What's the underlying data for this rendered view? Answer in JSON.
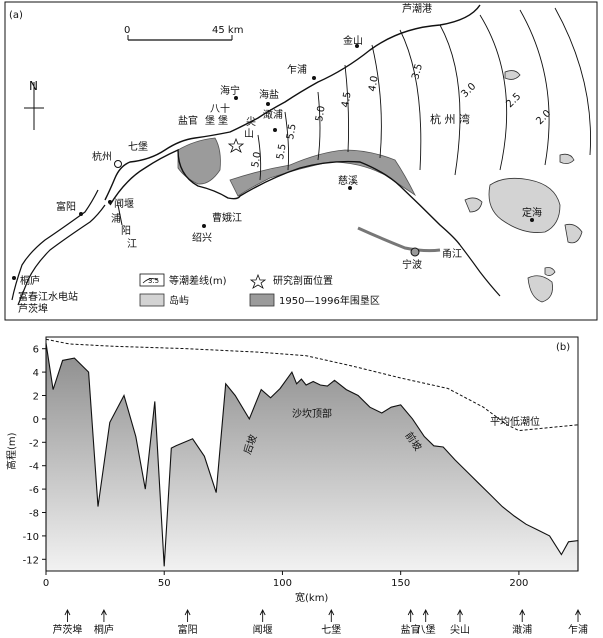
{
  "panel_a": {
    "label": "(a)",
    "scale": {
      "start": "0",
      "end": "45 km"
    },
    "north": "N",
    "places": {
      "luchao_port": "芦潮港",
      "jinshan": "金山",
      "zhapu": "乍浦",
      "haiyan": "海盐",
      "haining": "海宁",
      "ganpu": "澉浦",
      "bashi": "八十",
      "bao": "堡",
      "yanguan": "盐官",
      "bao2": "堡",
      "jian": "尖",
      "shan": "山",
      "qibao": "七堡",
      "hangzhou": "杭州",
      "hangzhou_bay": "杭 州 湾",
      "cixi": "慈溪",
      "caoejiang": "曹娥江",
      "shaoxing": "绍兴",
      "fuyang": "富阳",
      "wenyan": "闻堰",
      "puyang1": "浦",
      "puyang2": "阳",
      "puyang3": "江",
      "dinghai": "定海",
      "ningbo": "宁波",
      "yongjiang": "甬江",
      "tonglu": "桐庐",
      "fuchunjiang_dam": "富春江水电站",
      "lucibu": "芦茨埠"
    },
    "contours": [
      "5.0",
      "5.5",
      "5.5",
      "5.0",
      "4.5",
      "4.0",
      "3.5",
      "3.0",
      "2.5",
      "2.0"
    ],
    "legend": {
      "tidal_range": "等潮差线(m)",
      "study_site": "研究剖面位置",
      "island": "岛屿",
      "reclaimed": "1950—1996年围垦区"
    }
  },
  "panel_b": {
    "label": "(b)",
    "ylabel": "高程(m)",
    "xlabel": "宽(km)",
    "annotations": {
      "ridge": "沙坎顶部",
      "back_slope": "后坡",
      "front_slope": "前坡",
      "mean_low_tide": "平均低潮位"
    },
    "stations": [
      "芦茨埠",
      "桐庐",
      "富阳",
      "闻堰",
      "七堡",
      "盐官",
      "八堡",
      "尖山",
      "澉浦",
      "乍浦"
    ]
  },
  "chart_data": {
    "type": "area",
    "xlabel": "宽(km)",
    "ylabel": "高程(m)",
    "xlim": [
      0,
      225
    ],
    "ylim": [
      -13,
      7
    ],
    "xticks": [
      0,
      50,
      100,
      150,
      200
    ],
    "yticks": [
      6,
      4,
      2,
      0,
      -2,
      -4,
      -6,
      -8,
      -10,
      -12
    ],
    "series": [
      {
        "x": [
          0,
          3,
          7,
          12,
          18,
          22,
          27,
          33,
          38,
          42,
          46,
          50,
          53,
          55,
          62,
          67,
          72,
          76,
          80,
          86,
          91,
          95,
          99,
          104,
          106,
          108,
          110,
          113,
          116,
          119,
          122,
          127,
          132,
          137,
          142,
          146,
          150,
          155,
          160,
          164,
          168,
          173,
          178,
          183,
          188,
          193,
          198,
          203,
          208,
          213,
          218,
          221,
          225
        ],
        "values": [
          6.5,
          2.5,
          5.0,
          5.2,
          4.0,
          -7.5,
          -0.3,
          2.0,
          -1.5,
          -6.0,
          1.5,
          -12.6,
          -2.5,
          -2.3,
          -1.7,
          -3.2,
          -6.3,
          3.0,
          2.0,
          0.0,
          2.5,
          1.8,
          2.6,
          4.0,
          3.0,
          3.4,
          2.9,
          3.2,
          2.9,
          2.8,
          3.3,
          2.5,
          2.0,
          1.0,
          0.5,
          1.0,
          1.2,
          0.0,
          -1.5,
          -2.3,
          -2.4,
          -3.5,
          -4.5,
          -5.5,
          -6.5,
          -7.5,
          -8.3,
          -9.0,
          -9.5,
          -10.0,
          -11.6,
          -10.5,
          -10.4
        ]
      },
      {
        "name": "平均低潮位",
        "x": [
          0,
          10,
          30,
          60,
          90,
          110,
          130,
          150,
          170,
          185,
          195,
          200,
          215,
          225
        ],
        "values": [
          6.8,
          6.4,
          6.2,
          6.0,
          5.7,
          5.4,
          4.5,
          3.5,
          2.6,
          1.0,
          -0.5,
          -1.0,
          -0.7,
          -0.5
        ]
      }
    ]
  }
}
